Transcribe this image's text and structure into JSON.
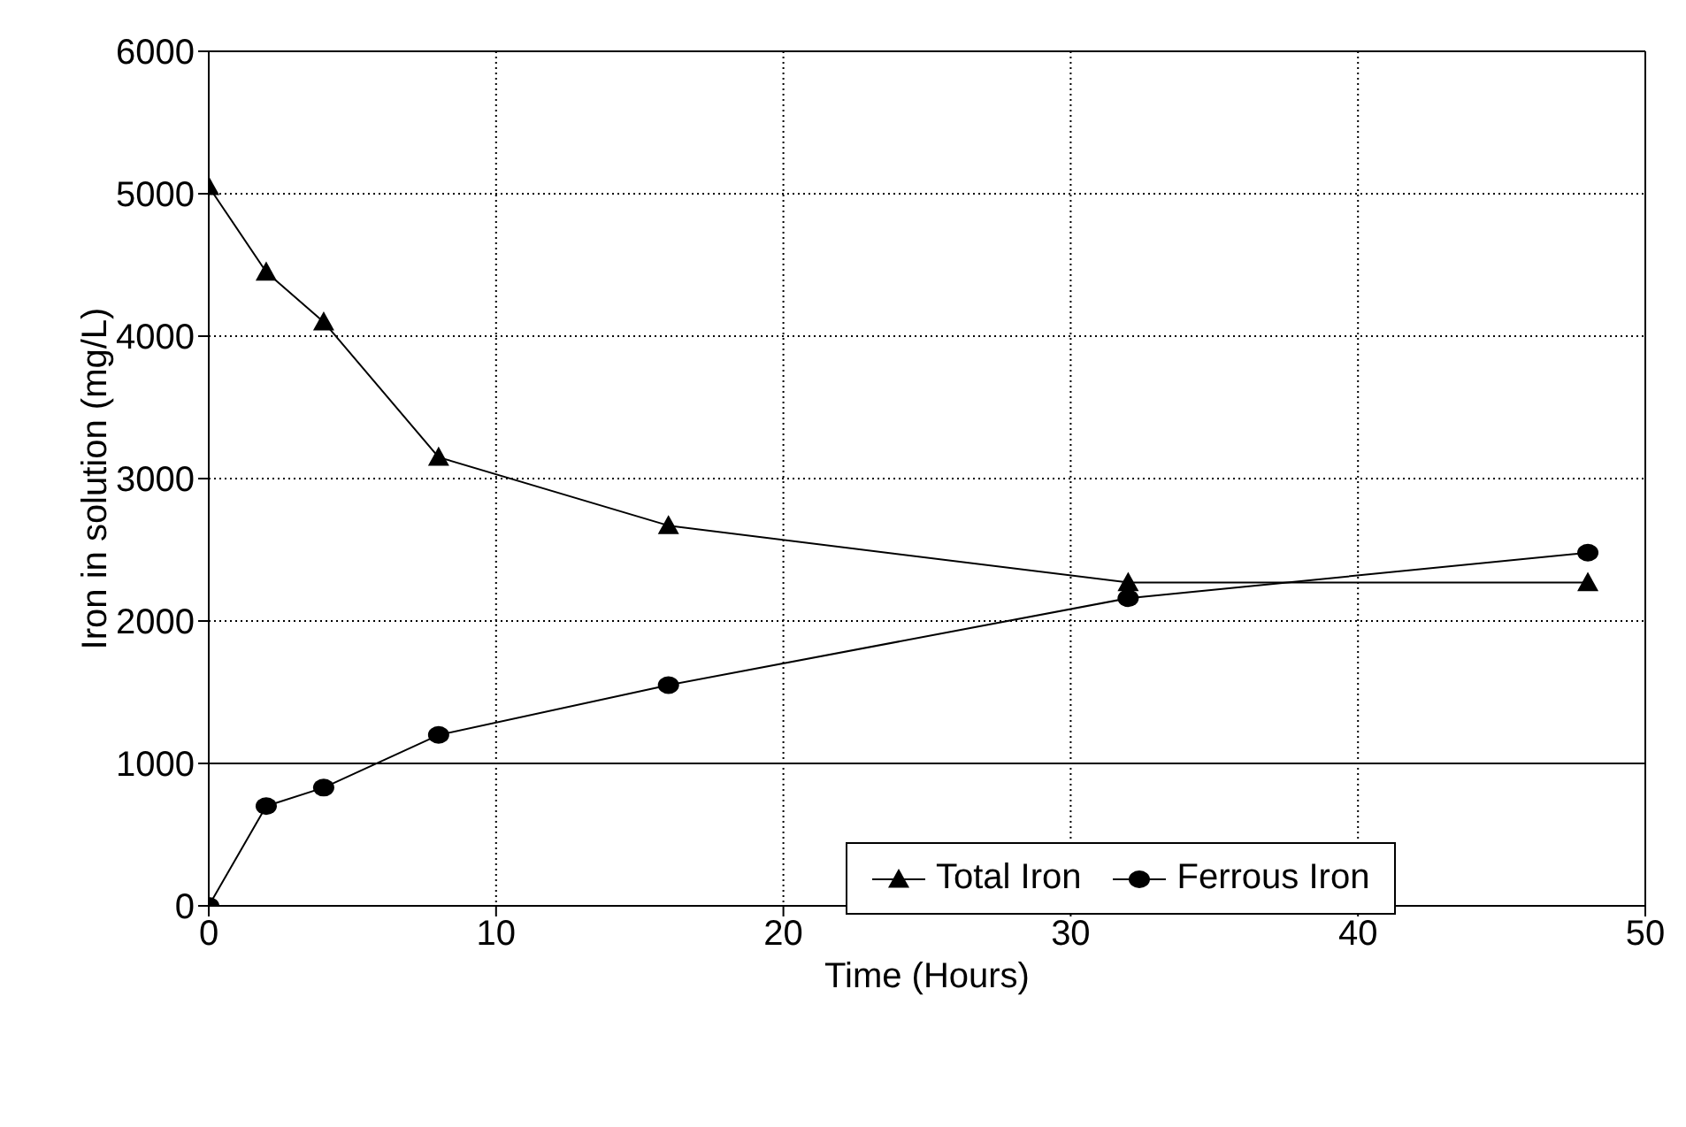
{
  "chart_data": {
    "type": "line",
    "xlabel": "Time (Hours)",
    "ylabel": "Iron in solution (mg/L)",
    "xlim": [
      0,
      50
    ],
    "xticks": [
      0,
      10,
      20,
      30,
      40,
      50
    ],
    "ylim": [
      0,
      6000
    ],
    "yticks": [
      0,
      1000,
      2000,
      3000,
      4000,
      5000,
      6000
    ],
    "grid": true,
    "legend": "bottom right",
    "line_style": "solid",
    "ref_lines": [
      {
        "axis": "y",
        "value": 1000,
        "color": "#000000",
        "line_style": "solid"
      }
    ],
    "series": [
      {
        "name": "Total Iron",
        "color": "#000000",
        "marker": "triangle",
        "x": [
          0,
          2,
          4,
          8,
          16,
          32,
          48
        ],
        "values": [
          5050,
          4450,
          4100,
          3150,
          2670,
          2270,
          2270
        ]
      },
      {
        "name": "Ferrous Iron",
        "color": "#000000",
        "marker": "circle",
        "x": [
          0,
          2,
          4,
          8,
          16,
          32,
          48
        ],
        "values": [
          0,
          700,
          830,
          1200,
          1550,
          2160,
          2480
        ]
      }
    ]
  }
}
